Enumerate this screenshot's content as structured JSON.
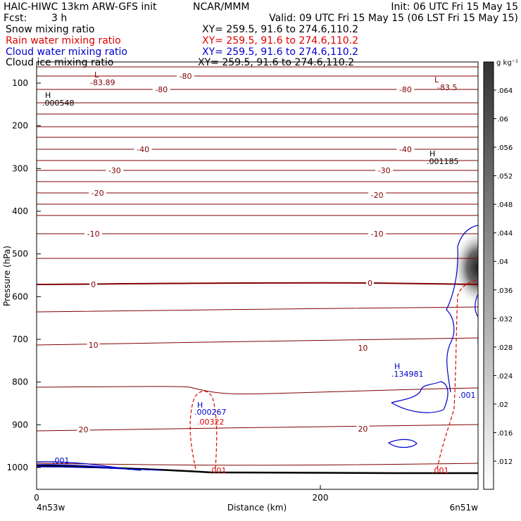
{
  "header": {
    "model": "HAIC-HIWC 13km ARW-GFS init",
    "center": "NCAR/MMM",
    "init": "Init: 06 UTC Fri 15 May 15",
    "fcst_label": "Fcst:",
    "fcst_value": "3 h",
    "valid": "Valid: 09 UTC Fri 15 May 15 (06 LST Fri 15 May 15)"
  },
  "fields": [
    {
      "name": "Snow mixing ratio",
      "xy": "XY= 259.5, 91.6 to 274.6,110.2",
      "color": "#000000"
    },
    {
      "name": "Rain water mixing ratio",
      "xy": "XY= 259.5, 91.6 to 274.6,110.2",
      "color": "#e00000"
    },
    {
      "name": "Cloud water mixing ratio",
      "xy": "XY= 259.5, 91.6 to 274.6,110.2",
      "color": "#0000cc"
    },
    {
      "name": "Cloud ice mixing ratio",
      "xy": "XY= 259.5, 91.6 to 274.6,110.2",
      "color": "#000000"
    }
  ],
  "chart_data": {
    "type": "contour cross-section",
    "ylabel": "Pressure (hPa)",
    "xlabel": "Distance (km)",
    "x_ticks": [
      0,
      200
    ],
    "y_ticks": [
      100,
      200,
      300,
      400,
      500,
      600,
      700,
      800,
      900,
      1000
    ],
    "ylim": [
      1050,
      50
    ],
    "xlim": [
      0,
      310
    ],
    "left_endpoint": "4n53w",
    "right_endpoint": "6n51w",
    "colorbar": {
      "unit": "g kg⁻¹",
      "ticks": [
        ".012",
        ".016",
        ".02",
        ".024",
        ".028",
        ".032",
        ".036",
        ".04",
        ".044",
        ".048",
        ".052",
        ".056",
        ".06",
        ".064"
      ]
    },
    "temperature_isotherm_labels": [
      {
        "text": "-80",
        "x_km": 90,
        "p": 127
      },
      {
        "text": "-80",
        "x_km": 260,
        "p": 127
      },
      {
        "text": "-80",
        "x_km": 100,
        "p": 97
      },
      {
        "text": "-40",
        "x_km": 75,
        "p": 257
      },
      {
        "text": "-40",
        "x_km": 262,
        "p": 257
      },
      {
        "text": "-30",
        "x_km": 55,
        "p": 317
      },
      {
        "text": "-30",
        "x_km": 245,
        "p": 317
      },
      {
        "text": "-20",
        "x_km": 40,
        "p": 423
      },
      {
        "text": "-20",
        "x_km": 240,
        "p": 423
      },
      {
        "text": "-10",
        "x_km": 40,
        "p": 575
      },
      {
        "text": "-10",
        "x_km": 240,
        "p": 575
      },
      {
        "text": "0",
        "x_km": 40,
        "p": 573
      },
      {
        "text": "0",
        "x_km": 235,
        "p": 573
      },
      {
        "text": "10",
        "x_km": 40,
        "p": 711
      },
      {
        "text": "10",
        "x_km": 230,
        "p": 711
      },
      {
        "text": "20",
        "x_km": 33,
        "p": 911
      },
      {
        "text": "20",
        "x_km": 230,
        "p": 911
      }
    ],
    "annotations": [
      {
        "text": "L",
        "color": "#800000"
      },
      {
        "text": "-83.89",
        "color": "#800000"
      },
      {
        "text": "L",
        "color": "#800000"
      },
      {
        "text": "-83.5",
        "color": "#800000"
      },
      {
        "text": "H",
        "color": "#000000"
      },
      {
        "text": ".000548",
        "color": "#000000"
      },
      {
        "text": "H",
        "color": "#000000"
      },
      {
        "text": ".001185",
        "color": "#000000"
      },
      {
        "text": "H",
        "color": "#0000cc"
      },
      {
        "text": ".134981",
        "color": "#0000cc"
      },
      {
        "text": "H",
        "color": "#0000cc"
      },
      {
        "text": ".000267",
        "color": "#0000cc"
      },
      {
        "text": ".00322",
        "color": "#e00000"
      },
      {
        "text": ".001",
        "color": "#0000cc"
      },
      {
        "text": ".001",
        "color": "#0000cc"
      },
      {
        "text": ".001",
        "color": "#e00000"
      },
      {
        "text": ".001",
        "color": "#e00000"
      }
    ],
    "grid": false
  }
}
